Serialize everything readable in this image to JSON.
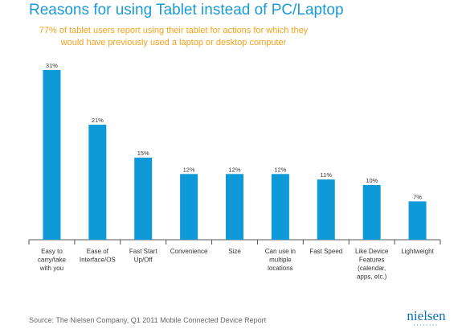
{
  "chart_data": {
    "type": "bar",
    "title": "Reasons for using Tablet instead of PC/Laptop",
    "subtitle": "77% of tablet users report using their tablet for actions for which they would have previously used a laptop or desktop computer",
    "categories": [
      [
        "Easy to",
        "carry/take",
        "with you"
      ],
      [
        "Ease of",
        "Interface/OS"
      ],
      [
        "Fast Start",
        "Up/Off"
      ],
      [
        "Convenience"
      ],
      [
        "Size"
      ],
      [
        "Can use in",
        "multiple",
        "locations"
      ],
      [
        "Fast Speed"
      ],
      [
        "Like Device",
        "Features",
        "(calendar,",
        "apps, etc.)"
      ],
      [
        "Lightweight"
      ]
    ],
    "values": [
      31,
      21,
      15,
      12,
      12,
      12,
      11,
      10,
      7
    ],
    "value_labels": [
      "31%",
      "21%",
      "15%",
      "12%",
      "12%",
      "12%",
      "11%",
      "10%",
      "7%"
    ],
    "ylim": [
      0,
      31
    ],
    "xlabel": "",
    "ylabel": "",
    "grid": false,
    "bar_color": "#0e9ad8"
  },
  "colors": {
    "title": "#1a9ad6",
    "subtitle": "#f5a21c",
    "axis": "#555555"
  },
  "footer": {
    "source": "Source: The Nielsen Company, Q1 2011 Mobile Connected Device Report",
    "logo_text": "nielsen",
    "logo_dots": "••••••••"
  }
}
